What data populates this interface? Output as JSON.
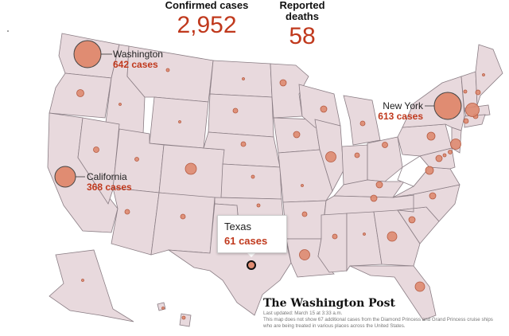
{
  "stats": {
    "confirmed_label": "Confirmed cases",
    "confirmed_value": "2,952",
    "deaths_label": "Reported deaths",
    "deaths_value": "58"
  },
  "callouts": {
    "washington": {
      "name": "Washington",
      "count": "642 cases"
    },
    "california": {
      "name": "California",
      "count": "368 cases"
    },
    "new_york": {
      "name": "New York",
      "count": "613 cases"
    },
    "texas": {
      "name": "Texas",
      "count": "61 cases"
    }
  },
  "footer": {
    "logo": "The Washington Post",
    "updated": "Last updated: March 15 at 3:33 a.m.",
    "note": "This map does not show 67 additional cases from the Diamond Princess and Grand Princess cruise ships who are being treated in various places across the United States."
  },
  "colors": {
    "accent": "#c0391d",
    "state_fill": "#e8d9dd",
    "bubble_fill": "#de8a70",
    "no_cases_state": "#ffffff"
  }
}
